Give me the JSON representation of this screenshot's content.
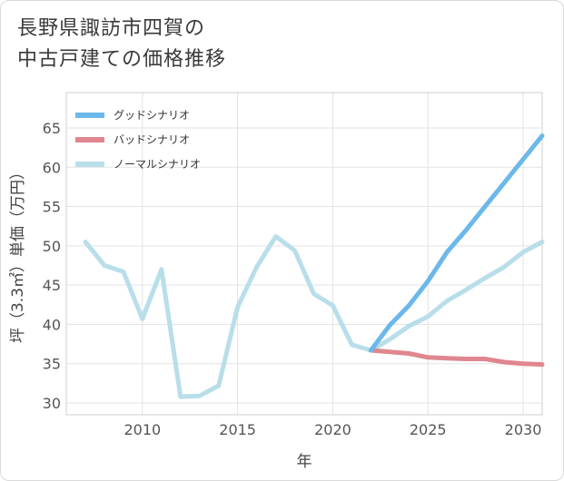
{
  "title": {
    "line1": "長野県諏訪市四賀の",
    "line2": "中古戸建ての価格推移"
  },
  "chart_data": {
    "type": "line",
    "title": "長野県諏訪市四賀の中古戸建ての価格推移",
    "xlabel": "年",
    "ylabel": "坪（3.3㎡）単価（万円）",
    "xlim": [
      2006,
      2031
    ],
    "ylim": [
      28.5,
      69.5
    ],
    "xticks": [
      2010,
      2015,
      2020,
      2025,
      2030
    ],
    "yticks": [
      30,
      35,
      40,
      45,
      50,
      55,
      60,
      65
    ],
    "grid": true,
    "legend_position": "top-left",
    "series": [
      {
        "name": "グッドシナリオ",
        "color": "#6cb8ea",
        "x": [
          2022,
          2023,
          2024,
          2025,
          2026,
          2027,
          2028,
          2029,
          2030,
          2031
        ],
        "values": [
          36.7,
          39.9,
          42.4,
          45.5,
          49.2,
          52.0,
          55.0,
          58.0,
          61.0,
          64.0
        ]
      },
      {
        "name": "バッドシナリオ",
        "color": "#e0868f",
        "x": [
          2022,
          2023,
          2024,
          2025,
          2026,
          2027,
          2028,
          2029,
          2030,
          2031
        ],
        "values": [
          36.7,
          36.5,
          36.3,
          35.8,
          35.7,
          35.6,
          35.6,
          35.2,
          35.0,
          34.9
        ]
      },
      {
        "name": "ノーマルシナリオ",
        "color": "#b8deea",
        "x": [
          2007,
          2008,
          2009,
          2010,
          2011,
          2012,
          2013,
          2014,
          2015,
          2016,
          2017,
          2018,
          2019,
          2020,
          2021,
          2022,
          2023,
          2024,
          2025,
          2026,
          2027,
          2028,
          2029,
          2030,
          2031
        ],
        "values": [
          50.5,
          47.5,
          46.7,
          40.7,
          47.0,
          30.8,
          30.9,
          32.2,
          42.2,
          47.3,
          51.2,
          49.4,
          43.9,
          42.4,
          37.4,
          36.7,
          38.1,
          39.8,
          41.0,
          43.0,
          44.4,
          45.9,
          47.3,
          49.2,
          50.5
        ]
      }
    ]
  }
}
